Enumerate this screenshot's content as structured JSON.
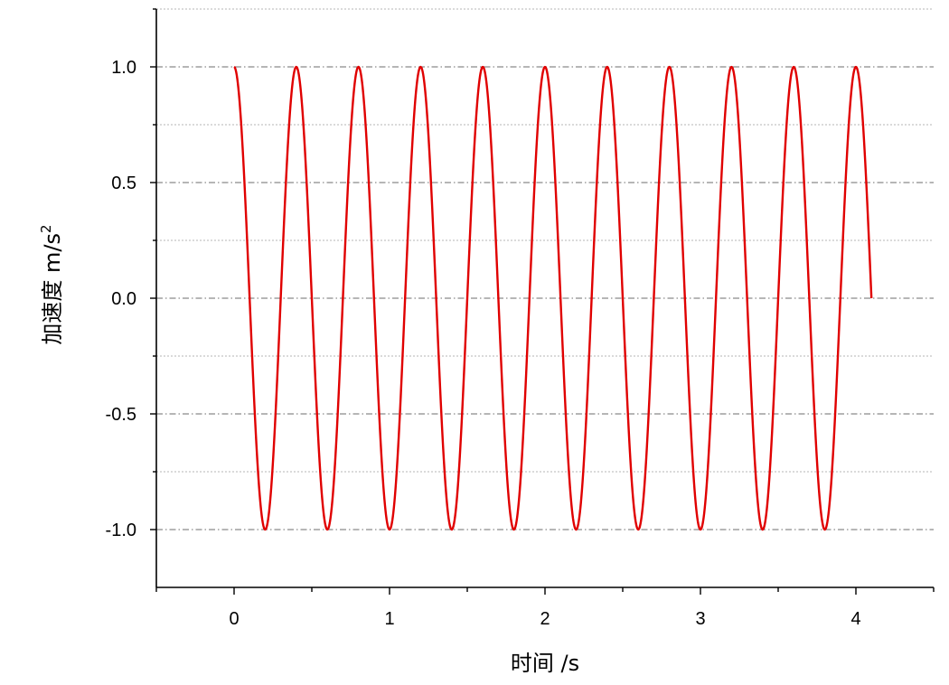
{
  "chart_data": {
    "type": "line",
    "xlabel": "时间 /s",
    "ylabel_prefix": "加速度 m/s",
    "ylabel_superscript": "2",
    "xlim": [
      -0.5,
      4.5
    ],
    "ylim": [
      -1.25,
      1.25
    ],
    "x_ticks": [
      0,
      1,
      2,
      3,
      4
    ],
    "x_tick_labels": [
      "0",
      "1",
      "2",
      "3",
      "4"
    ],
    "x_minor_ticks": [
      -0.5,
      0.5,
      1.5,
      2.5,
      3.5,
      4.5
    ],
    "y_ticks": [
      1.0,
      0.5,
      0.0,
      -0.5,
      -1.0
    ],
    "y_tick_labels": [
      "1.0",
      "0.5",
      "0.0",
      "-0.5",
      "-1.0"
    ],
    "y_minor_gridlines": [
      1.25,
      0.75,
      0.25,
      -0.25,
      -0.75
    ],
    "grid": true,
    "series": [
      {
        "function": "cos(2*pi*x/0.4)",
        "x_start": 0,
        "x_end": 4.1,
        "period": 0.4,
        "amplitude": 1.0,
        "color": "#e00000"
      }
    ]
  }
}
